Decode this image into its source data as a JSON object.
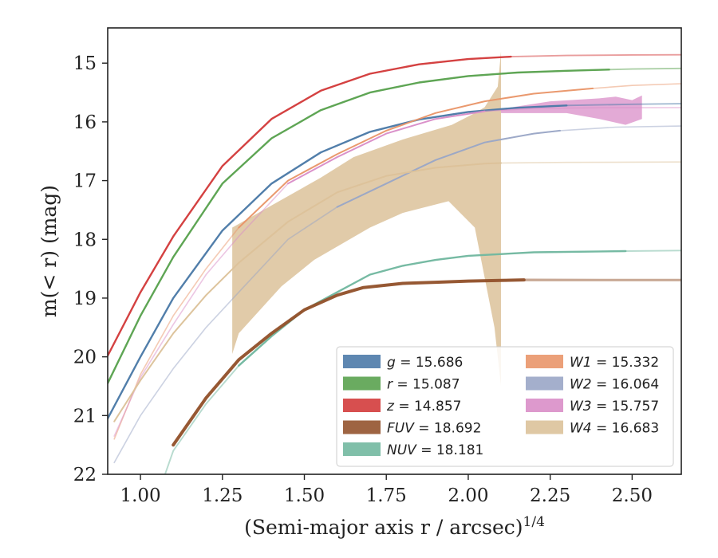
{
  "chart_data": {
    "type": "line",
    "xlabel": "(Semi-major axis r / arcsec)",
    "xlabel_superscript": "1/4",
    "ylabel": "m(< r) (mag)",
    "xlim": [
      0.9,
      2.65
    ],
    "ylim": [
      22,
      14.4
    ],
    "y_inverted": true,
    "grid": false,
    "legend_placement": "lower-right",
    "x_ticks": [
      "1.00",
      "1.25",
      "1.50",
      "1.75",
      "2.00",
      "2.25",
      "2.50"
    ],
    "x_tick_values": [
      1.0,
      1.25,
      1.5,
      1.75,
      2.0,
      2.25,
      2.5
    ],
    "y_ticks": [
      "15",
      "16",
      "17",
      "18",
      "19",
      "20",
      "21",
      "22"
    ],
    "y_tick_values": [
      15,
      16,
      17,
      18,
      19,
      20,
      21,
      22
    ],
    "legend": [
      {
        "var": "g",
        "text": " = 15.686",
        "color": "#4c7aa8"
      },
      {
        "var": "r",
        "text": " = 15.087",
        "color": "#5aa24f"
      },
      {
        "var": "z",
        "text": " = 14.857",
        "color": "#d33c3c"
      },
      {
        "var": "FUV",
        "text": " = 18.692",
        "color": "#93532d"
      },
      {
        "var": "NUV",
        "text": " = 18.181",
        "color": "#72b8a0"
      },
      {
        "var": "W1",
        "text": " = 15.332",
        "color": "#e9966a"
      },
      {
        "var": "W2",
        "text": " = 16.064",
        "color": "#9aa6c6"
      },
      {
        "var": "W3",
        "text": " = 15.757",
        "color": "#d98ec8"
      },
      {
        "var": "W4",
        "text": " = 16.683",
        "color": "#dcc29a"
      }
    ],
    "series": [
      {
        "name": "r",
        "color": "#5aa24f",
        "width": 2.4,
        "x_end_solid": 2.43,
        "x": [
          0.9,
          1.0,
          1.1,
          1.25,
          1.4,
          1.55,
          1.7,
          1.85,
          2.0,
          2.15,
          2.3,
          2.43,
          2.5,
          2.65
        ],
        "y": [
          20.45,
          19.3,
          18.3,
          17.05,
          16.28,
          15.8,
          15.5,
          15.33,
          15.22,
          15.16,
          15.13,
          15.11,
          15.1,
          15.09
        ]
      },
      {
        "name": "z",
        "color": "#d33c3c",
        "width": 2.4,
        "x_end_solid": 2.13,
        "x": [
          0.9,
          1.0,
          1.1,
          1.25,
          1.4,
          1.55,
          1.7,
          1.85,
          2.0,
          2.13,
          2.3,
          2.5,
          2.65
        ],
        "y": [
          19.98,
          18.9,
          17.95,
          16.75,
          15.95,
          15.47,
          15.18,
          15.02,
          14.93,
          14.89,
          14.87,
          14.86,
          14.857
        ]
      },
      {
        "name": "g",
        "color": "#4c7aa8",
        "width": 2.4,
        "x_end_solid": 2.3,
        "x": [
          0.9,
          1.0,
          1.1,
          1.25,
          1.4,
          1.55,
          1.7,
          1.85,
          2.0,
          2.15,
          2.3,
          2.5,
          2.65
        ],
        "y": [
          21.05,
          20.0,
          19.0,
          17.85,
          17.05,
          16.52,
          16.17,
          15.96,
          15.83,
          15.76,
          15.72,
          15.7,
          15.69
        ]
      },
      {
        "name": "W1",
        "color": "#e9966a",
        "width": 2.0,
        "x_start_solid": 1.28,
        "x_end_solid": 2.38,
        "x": [
          0.92,
          1.0,
          1.1,
          1.2,
          1.3,
          1.45,
          1.6,
          1.75,
          1.9,
          2.05,
          2.2,
          2.38,
          2.5,
          2.65
        ],
        "y": [
          21.4,
          20.3,
          19.3,
          18.5,
          17.8,
          17.0,
          16.55,
          16.15,
          15.85,
          15.65,
          15.52,
          15.43,
          15.38,
          15.35
        ]
      },
      {
        "name": "W3",
        "color": "#d98ec8",
        "width": 2.0,
        "x_start_solid": 1.45,
        "x_end_solid": 2.15,
        "x": [
          0.92,
          1.0,
          1.1,
          1.2,
          1.3,
          1.45,
          1.6,
          1.75,
          1.9,
          2.05,
          2.2,
          2.4,
          2.65
        ],
        "y": [
          21.35,
          20.35,
          19.45,
          18.6,
          17.95,
          17.05,
          16.6,
          16.2,
          15.95,
          15.82,
          15.77,
          15.76,
          15.757
        ]
      },
      {
        "name": "W2",
        "color": "#9aa6c6",
        "width": 2.0,
        "x_start_solid": 1.5,
        "x_end_solid": 2.28,
        "x": [
          0.92,
          1.0,
          1.1,
          1.2,
          1.3,
          1.45,
          1.6,
          1.75,
          1.9,
          2.05,
          2.2,
          2.28,
          2.45,
          2.65
        ],
        "y": [
          21.8,
          21.0,
          20.2,
          19.5,
          18.9,
          18.0,
          17.45,
          17.05,
          16.65,
          16.35,
          16.2,
          16.15,
          16.09,
          16.07
        ]
      },
      {
        "name": "W4",
        "color": "#dcc29a",
        "width": 2.0,
        "x_end_solid": 2.1,
        "x": [
          0.92,
          1.0,
          1.1,
          1.2,
          1.3,
          1.45,
          1.6,
          1.75,
          1.9,
          2.05,
          2.1,
          2.3,
          2.65
        ],
        "y": [
          21.1,
          20.4,
          19.6,
          18.95,
          18.4,
          17.7,
          17.2,
          16.92,
          16.78,
          16.71,
          16.7,
          16.69,
          16.683
        ]
      },
      {
        "name": "NUV",
        "color": "#72b8a0",
        "width": 2.4,
        "x_start_solid": 1.3,
        "x_end_solid": 2.48,
        "x": [
          1.05,
          1.1,
          1.2,
          1.3,
          1.4,
          1.5,
          1.6,
          1.7,
          1.8,
          1.9,
          2.0,
          2.2,
          2.48,
          2.65
        ],
        "y": [
          22.4,
          21.6,
          20.8,
          20.15,
          19.65,
          19.2,
          18.9,
          18.6,
          18.45,
          18.35,
          18.28,
          18.22,
          18.2,
          18.19
        ]
      },
      {
        "name": "FUV",
        "color": "#93532d",
        "width": 4.0,
        "x_start_solid": 1.1,
        "x_end_solid": 2.17,
        "x": [
          1.1,
          1.2,
          1.3,
          1.4,
          1.5,
          1.6,
          1.68,
          1.8,
          1.9,
          2.0,
          2.1,
          2.17,
          2.4,
          2.65
        ],
        "y": [
          21.5,
          20.7,
          20.05,
          19.6,
          19.2,
          18.95,
          18.82,
          18.75,
          18.73,
          18.71,
          18.7,
          18.69,
          18.692,
          18.692
        ]
      }
    ],
    "bands": [
      {
        "name": "W4",
        "color": "#dcc29a",
        "opacity": 0.85,
        "x_upper": [
          1.28,
          1.55,
          1.65,
          1.8,
          1.95,
          2.02,
          2.05,
          2.09,
          2.1
        ],
        "y_upper": [
          17.8,
          16.95,
          16.6,
          16.3,
          16.05,
          15.85,
          15.75,
          15.4,
          14.8
        ],
        "x_lower": [
          2.1,
          2.1,
          2.08,
          2.02,
          1.94,
          1.8,
          1.7,
          1.53,
          1.43,
          1.3,
          1.28
        ],
        "y_lower": [
          21.05,
          20.5,
          19.5,
          17.8,
          17.35,
          17.55,
          17.8,
          18.35,
          18.8,
          19.6,
          19.95
        ]
      },
      {
        "name": "W3",
        "color": "#d98ec8",
        "opacity": 0.75,
        "x_upper": [
          2.1,
          2.25,
          2.4,
          2.45,
          2.5,
          2.53
        ],
        "y_upper": [
          15.78,
          15.65,
          15.6,
          15.57,
          15.63,
          15.55
        ],
        "x_lower": [
          2.53,
          2.48,
          2.4,
          2.3,
          2.2,
          2.1
        ],
        "y_lower": [
          15.95,
          16.05,
          15.95,
          15.85,
          15.85,
          15.85
        ]
      }
    ]
  }
}
